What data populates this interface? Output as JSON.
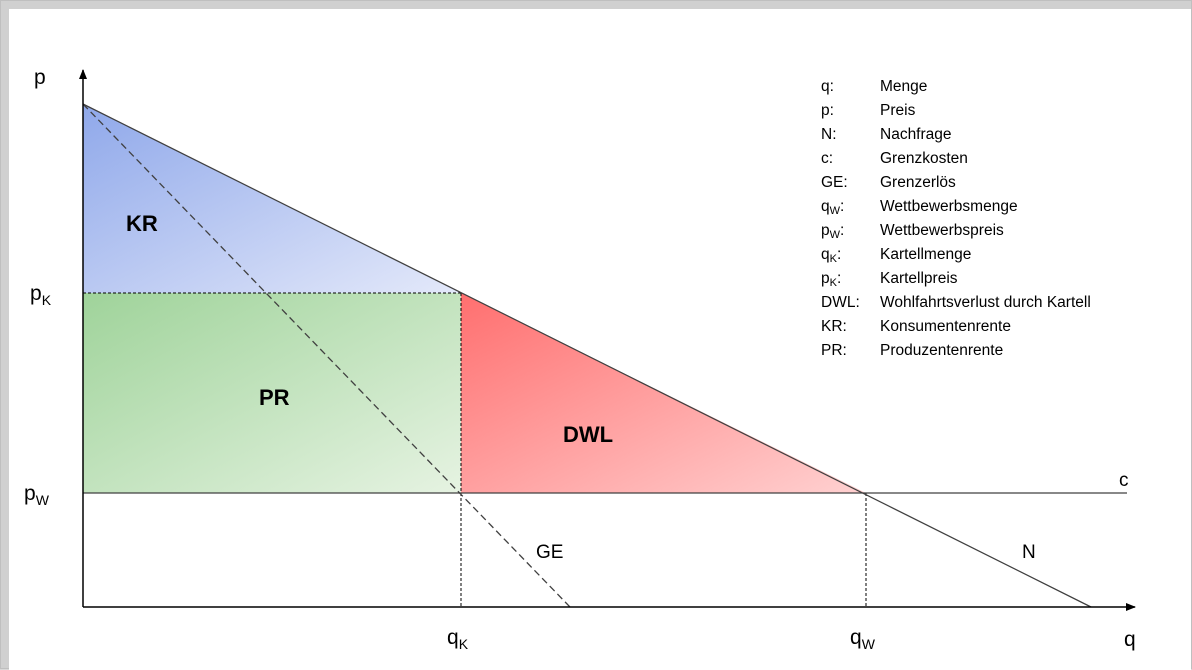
{
  "axes": {
    "y_label": "p",
    "x_label": "q"
  },
  "price_labels": {
    "pk": {
      "base": "p",
      "sub": "K"
    },
    "pw": {
      "base": "p",
      "sub": "W"
    }
  },
  "quantity_labels": {
    "qk": {
      "base": "q",
      "sub": "K"
    },
    "qw": {
      "base": "q",
      "sub": "W"
    }
  },
  "curve_labels": {
    "cost": "c",
    "marginal_revenue": "GE",
    "demand": "N"
  },
  "region_labels": {
    "consumer_surplus": "KR",
    "producer_surplus": "PR",
    "deadweight_loss": "DWL"
  },
  "colors": {
    "kr_strong": "#8fa8ea",
    "kr_light": "#e4e9fa",
    "pr_strong": "#9fd39a",
    "pr_light": "#e6f3e2",
    "dwl_strong": "#ff6f6f",
    "dwl_light": "#ffd1d1",
    "line": "#404040"
  },
  "legend": [
    {
      "abbr": "q:",
      "abbr_sub": "",
      "text": "Menge"
    },
    {
      "abbr": "p:",
      "abbr_sub": "",
      "text": "Preis"
    },
    {
      "abbr": "N:",
      "abbr_sub": "",
      "text": "Nachfrage"
    },
    {
      "abbr": "c:",
      "abbr_sub": "",
      "text": "Grenzkosten"
    },
    {
      "abbr": "GE:",
      "abbr_sub": "",
      "text": "Grenzerlös"
    },
    {
      "abbr": "q",
      "abbr_sub": "W",
      "text": "Wettbewerbsmenge"
    },
    {
      "abbr": "p",
      "abbr_sub": "W",
      "text": "Wettbewerbspreis"
    },
    {
      "abbr": "q",
      "abbr_sub": "K",
      "text": "Kartellmenge"
    },
    {
      "abbr": "p",
      "abbr_sub": "K",
      "text": "Kartellpreis"
    },
    {
      "abbr": "DWL:",
      "abbr_sub": "",
      "text": "Wohlfahrtsverlust durch Kartell"
    },
    {
      "abbr": "KR:",
      "abbr_sub": "",
      "text": "Konsumentenrente"
    },
    {
      "abbr": "PR:",
      "abbr_sub": "",
      "text": "Produzentenrente"
    }
  ]
}
